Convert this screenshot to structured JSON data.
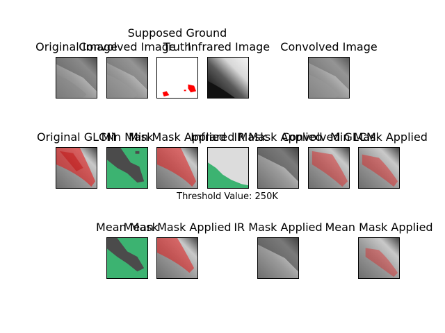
{
  "titles": {
    "r1_original": "Original Image",
    "r1_convolved": "Convolved Image",
    "r1_ground_line1": "Supposed Ground",
    "r1_ground_line2": "Truth",
    "r1_infrared": "Infrared Image",
    "r1_convolved_right": "Convolved Image",
    "r2_original_glcm": "Original GLCM",
    "r2_min_mask": "Min Mask",
    "r2_min_mask_applied": "Min Mask Applied",
    "r2_infrared_mask": "Infrared Mask",
    "r2_ir_mask_applied": "IR Mask Applied",
    "r2_convolved_glcm": "Convolved GLCM",
    "r2_min_mask_applied_right": "Min Mask Applied",
    "r3_mean_mask": "Mean Mask",
    "r3_mean_mask_applied": "Mean Mask Applied",
    "r3_ir_mask_applied": "IR Mask Applied",
    "r3_mean_mask_applied_right": "Mean Mask Applied"
  },
  "caption": "Threshold Value: 250K",
  "colors": {
    "mask_green": "#3cb371",
    "mask_dark": "#4b4b4b",
    "overlay_red": "#e11a1a",
    "ground_truth_red": "#ff0000"
  }
}
